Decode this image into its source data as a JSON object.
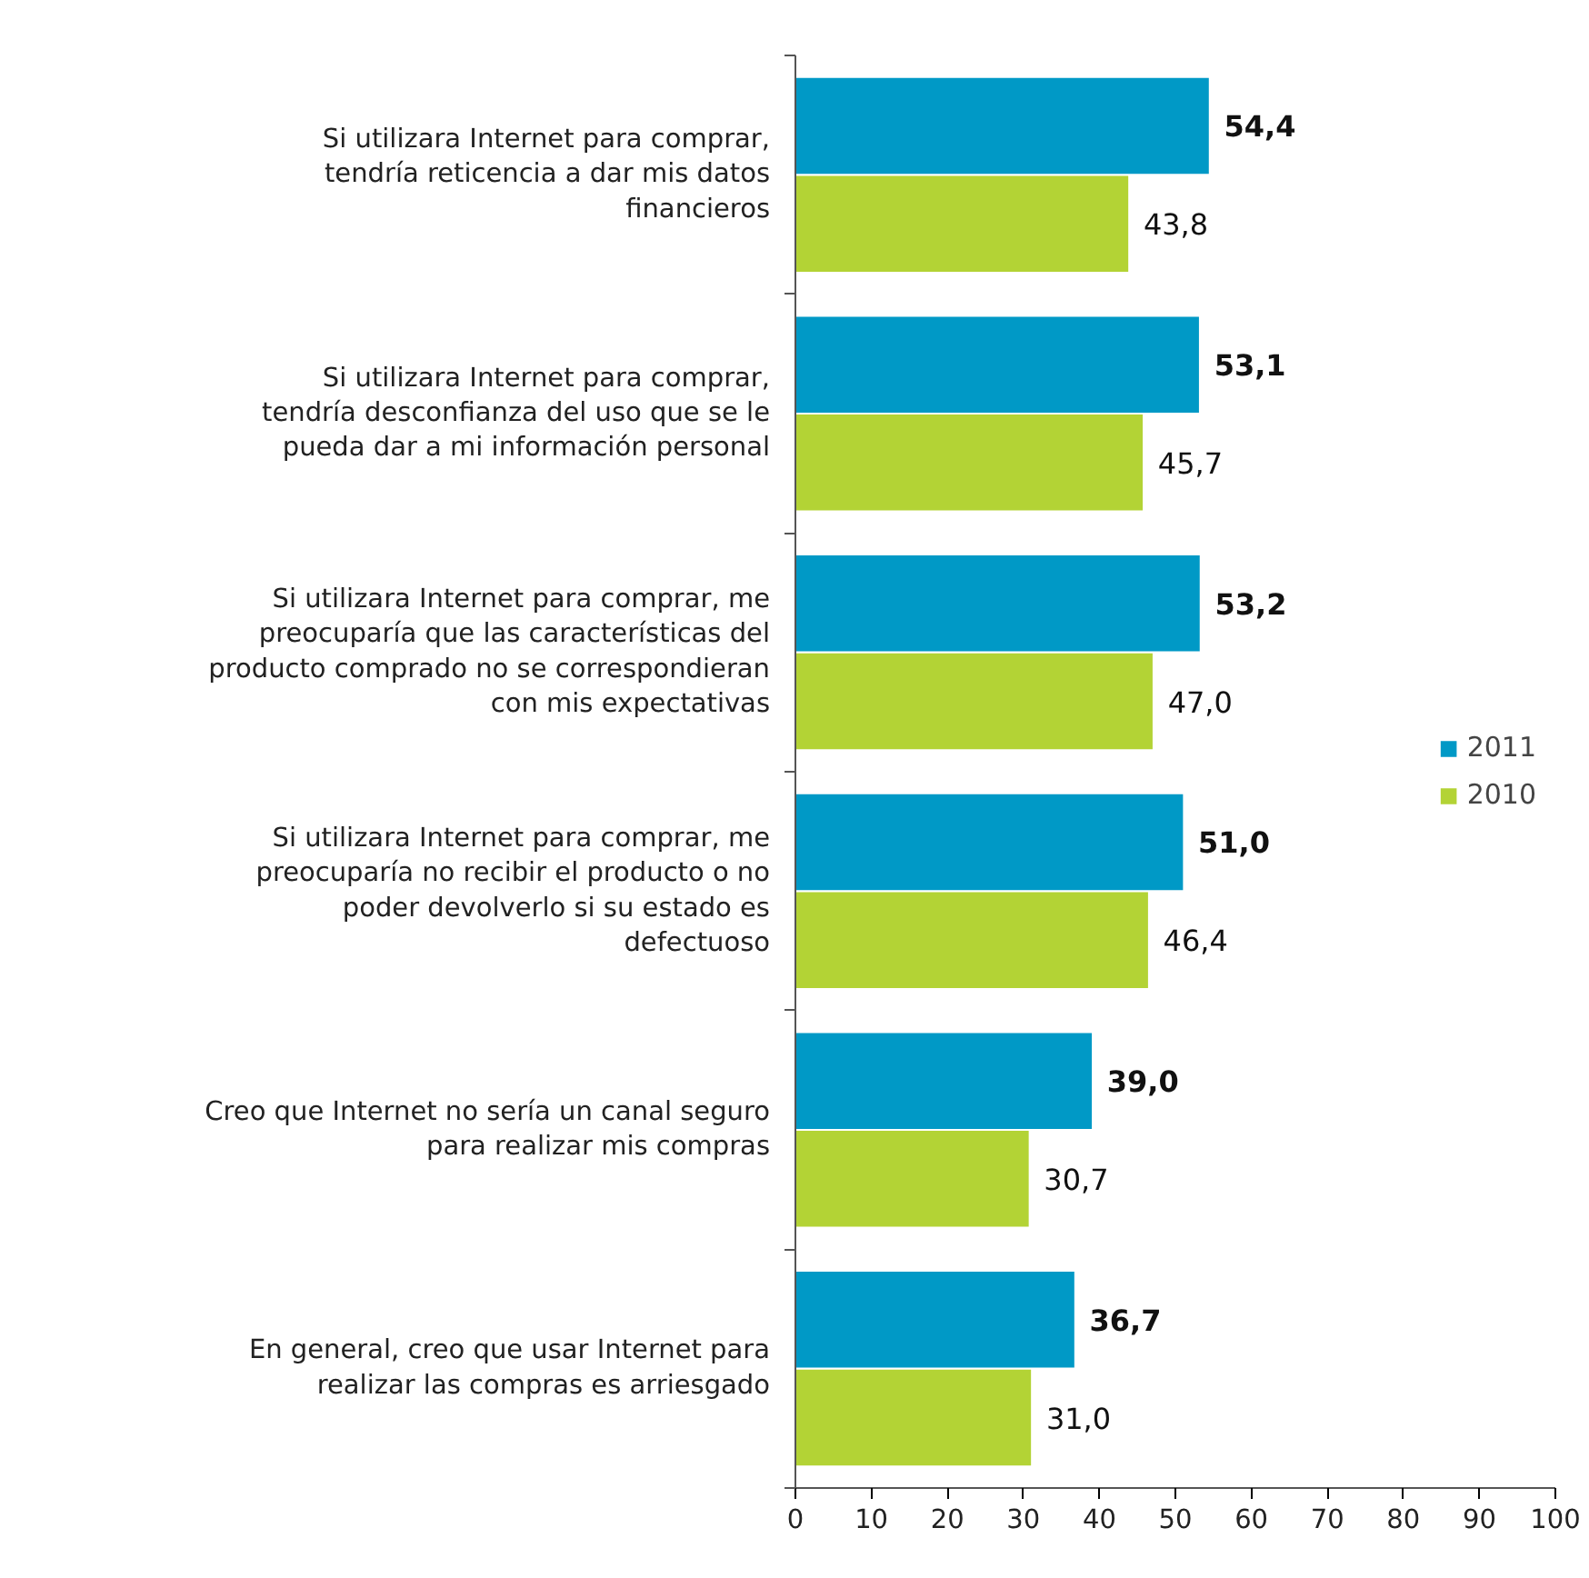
{
  "chart_data": {
    "type": "bar",
    "orientation": "horizontal",
    "categories": [
      "Si utilizara Internet para comprar, tendría reticencia a dar mis datos financieros",
      "Si utilizara Internet para comprar, tendría desconfianza del uso que se le pueda dar a mi información personal",
      "Si utilizara Internet para comprar, me preocuparía que las características del producto comprado no se correspondieran con mis expectativas",
      "Si utilizara Internet para comprar, me preocuparía no recibir el producto o no poder devolverlo si su estado es defectuoso",
      "Creo que Internet no sería un canal seguro para realizar mis compras",
      "En general, creo que usar Internet para realizar las compras es arriesgado"
    ],
    "series": [
      {
        "name": "2011",
        "color": "#0099c6",
        "values": [
          54.4,
          53.1,
          53.2,
          51.0,
          39.0,
          36.7
        ],
        "value_labels": [
          "54,4",
          "53,1",
          "53,2",
          "51,0",
          "39,0",
          "36,7"
        ]
      },
      {
        "name": "2010",
        "color": "#b3d335",
        "values": [
          43.8,
          45.7,
          47.0,
          46.4,
          30.7,
          31.0
        ],
        "value_labels": [
          "43,8",
          "45,7",
          "47,0",
          "46,4",
          "30,7",
          "31,0"
        ]
      }
    ],
    "xlim": [
      0,
      100
    ],
    "xticks": [
      0,
      10,
      20,
      30,
      40,
      50,
      60,
      70,
      80,
      90,
      100
    ],
    "grid": false,
    "legend": "right"
  }
}
